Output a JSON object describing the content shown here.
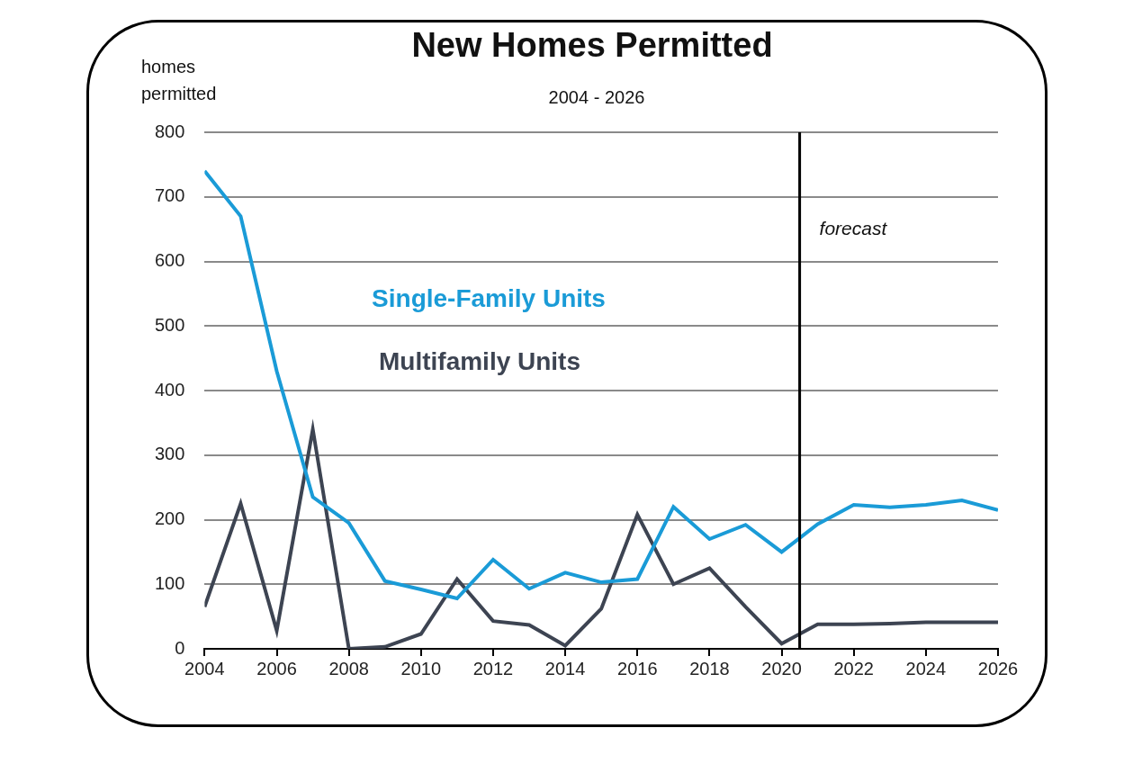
{
  "chart_data": {
    "type": "line",
    "title": "New Homes Permitted",
    "subtitle": "2004 - 2026",
    "ylabel": "homes permitted",
    "x": [
      2004,
      2005,
      2006,
      2007,
      2008,
      2009,
      2010,
      2011,
      2012,
      2013,
      2014,
      2015,
      2016,
      2017,
      2018,
      2019,
      2020,
      2021,
      2022,
      2023,
      2024,
      2025,
      2026
    ],
    "series": [
      {
        "name": "Single-Family Units",
        "color": "#1a9bd7",
        "values": [
          740,
          670,
          430,
          235,
          195,
          105,
          92,
          78,
          138,
          93,
          118,
          103,
          108,
          220,
          170,
          192,
          150,
          193,
          223,
          219,
          223,
          230,
          215
        ]
      },
      {
        "name": "Multifamily Units",
        "color": "#3d4452",
        "values": [
          65,
          225,
          28,
          340,
          0,
          3,
          23,
          108,
          43,
          37,
          5,
          62,
          208,
          100,
          125,
          65,
          8,
          38,
          38,
          39,
          41,
          41,
          41
        ]
      }
    ],
    "xlim": [
      2004,
      2026
    ],
    "xticks": [
      2004,
      2006,
      2008,
      2010,
      2012,
      2014,
      2016,
      2018,
      2020,
      2022,
      2024,
      2026
    ],
    "ylim": [
      0,
      800
    ],
    "yticks": [
      0,
      100,
      200,
      300,
      400,
      500,
      600,
      700,
      800
    ],
    "grid": true,
    "annotations": [
      {
        "x": 2020.5,
        "label": "forecast"
      }
    ]
  }
}
